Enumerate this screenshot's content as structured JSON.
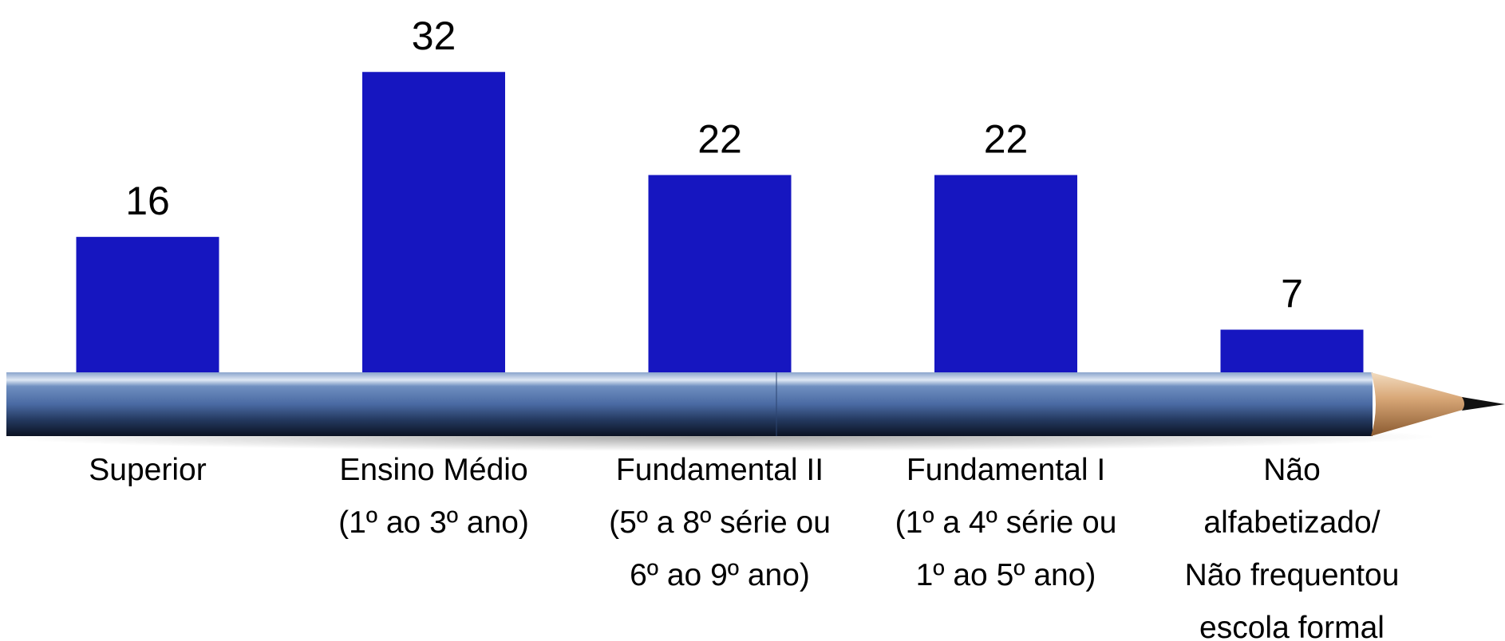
{
  "chart_data": {
    "type": "bar",
    "categories": [
      "Superior",
      "Ensino Médio\n(1º ao 3º ano)",
      "Fundamental II\n(5º a 8º série ou\n6º ao 9º ano)",
      "Fundamental I\n(1º a 4º série ou\n1º ao 5º ano)",
      "Não\nalfabetizado/\nNão frequentou\nescola formal"
    ],
    "values": [
      16,
      32,
      22,
      22,
      7
    ],
    "color": "#1616c0"
  }
}
